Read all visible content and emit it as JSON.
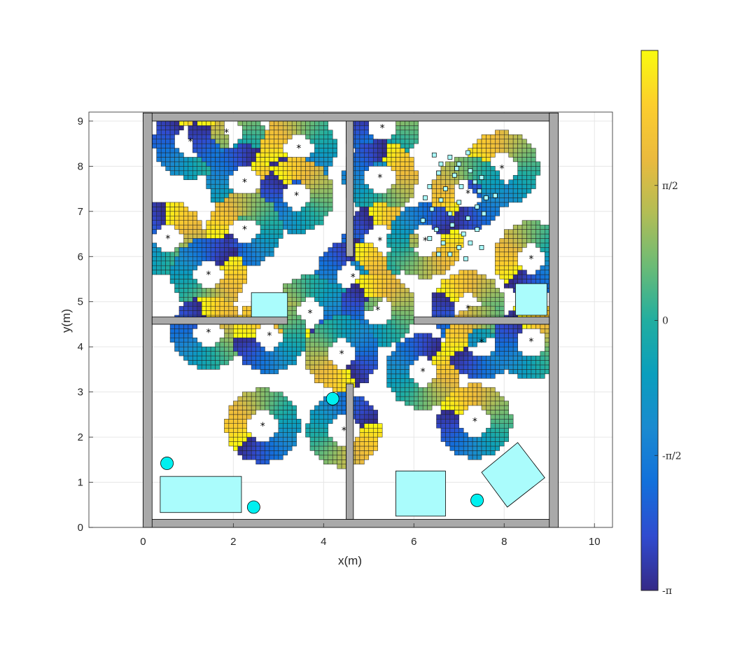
{
  "chart_data": {
    "type": "heatmap",
    "xlabel": "x(m)",
    "ylabel": "y(m)",
    "xlim": [
      -1.2,
      10.4
    ],
    "ylim": [
      0,
      9.2
    ],
    "xticks": [
      0,
      2,
      4,
      6,
      8,
      10
    ],
    "yticks": [
      0,
      1,
      2,
      3,
      4,
      5,
      6,
      7,
      8,
      9
    ],
    "grid": true,
    "colormap": "parula",
    "colorbar": {
      "range": [
        -3.1416,
        3.1416
      ],
      "ticks": [
        {
          "value": -3.1416,
          "label": "-π"
        },
        {
          "value": -1.5708,
          "label": "-π/2"
        },
        {
          "value": 0,
          "label": "0"
        },
        {
          "value": 1.5708,
          "label": "π/2"
        }
      ]
    },
    "walls": [
      {
        "x": 0,
        "y": 0,
        "w": 9.2,
        "h": 0.18
      },
      {
        "x": 0,
        "y": 9.0,
        "w": 9.2,
        "h": 0.18
      },
      {
        "x": 0,
        "y": 0,
        "w": 0.2,
        "h": 9.18
      },
      {
        "x": 9.0,
        "y": 0,
        "w": 0.2,
        "h": 9.18
      },
      {
        "x": 4.5,
        "y": 6.0,
        "w": 0.16,
        "h": 3.0
      },
      {
        "x": 4.5,
        "y": 0.18,
        "w": 0.16,
        "h": 3.0
      },
      {
        "x": 0.2,
        "y": 4.5,
        "w": 3.0,
        "h": 0.16
      },
      {
        "x": 6.0,
        "y": 4.5,
        "w": 3.0,
        "h": 0.16
      }
    ],
    "obstacles": {
      "rects": [
        {
          "x": 0.38,
          "y": 0.33,
          "w": 1.8,
          "h": 0.8
        },
        {
          "x": 5.6,
          "y": 0.25,
          "w": 1.1,
          "h": 1.0
        },
        {
          "x": 2.4,
          "y": 4.65,
          "w": 0.8,
          "h": 0.55
        },
        {
          "x": 8.25,
          "y": 4.7,
          "w": 0.7,
          "h": 0.7
        }
      ],
      "polygons": [
        [
          [
            7.5,
            1.22
          ],
          [
            8.3,
            1.88
          ],
          [
            8.9,
            1.1
          ],
          [
            8.07,
            0.45
          ]
        ]
      ],
      "circles": [
        {
          "x": 0.53,
          "y": 1.42,
          "r": 0.14
        },
        {
          "x": 2.45,
          "y": 0.45,
          "r": 0.14
        },
        {
          "x": 4.2,
          "y": 2.85,
          "r": 0.14
        },
        {
          "x": 7.4,
          "y": 0.6,
          "r": 0.14
        }
      ],
      "small_squares": [
        [
          6.45,
          8.25
        ],
        [
          6.6,
          8.05
        ],
        [
          6.8,
          8.2
        ],
        [
          7.0,
          8.05
        ],
        [
          7.2,
          8.3
        ],
        [
          6.55,
          7.85
        ],
        [
          6.9,
          7.8
        ],
        [
          7.25,
          7.9
        ],
        [
          7.5,
          7.75
        ],
        [
          6.35,
          7.55
        ],
        [
          6.7,
          7.5
        ],
        [
          7.05,
          7.55
        ],
        [
          7.45,
          7.45
        ],
        [
          7.8,
          7.35
        ],
        [
          6.25,
          7.3
        ],
        [
          6.6,
          7.25
        ],
        [
          7.0,
          7.2
        ],
        [
          7.4,
          7.1
        ],
        [
          7.6,
          7.3
        ],
        [
          6.4,
          7.05
        ],
        [
          6.8,
          6.95
        ],
        [
          7.2,
          6.85
        ],
        [
          7.55,
          6.95
        ],
        [
          6.2,
          6.8
        ],
        [
          6.5,
          6.6
        ],
        [
          6.85,
          6.7
        ],
        [
          7.1,
          6.5
        ],
        [
          7.4,
          6.6
        ],
        [
          6.65,
          6.3
        ],
        [
          7.0,
          6.2
        ],
        [
          6.35,
          6.4
        ],
        [
          7.25,
          6.3
        ],
        [
          6.8,
          6.05
        ],
        [
          7.5,
          6.2
        ],
        [
          7.15,
          5.95
        ],
        [
          6.55,
          6.05
        ],
        [
          7.35,
          7.65
        ],
        [
          6.95,
          7.95
        ]
      ]
    },
    "rings": [
      {
        "x": 1.05,
        "y": 8.55,
        "phase": 1.0
      },
      {
        "x": 1.85,
        "y": 8.75,
        "phase": 0.3
      },
      {
        "x": 2.25,
        "y": 7.65,
        "phase": 2.0
      },
      {
        "x": 3.45,
        "y": 8.4,
        "phase": -0.5
      },
      {
        "x": 3.4,
        "y": 7.35,
        "phase": 0.8
      },
      {
        "x": 0.55,
        "y": 6.4,
        "phase": 1.5
      },
      {
        "x": 2.25,
        "y": 6.6,
        "phase": -0.3
      },
      {
        "x": 1.45,
        "y": 5.6,
        "phase": 2.5
      },
      {
        "x": 5.3,
        "y": 8.85,
        "phase": 0.6
      },
      {
        "x": 5.25,
        "y": 7.75,
        "phase": 1.8
      },
      {
        "x": 7.95,
        "y": 7.95,
        "phase": 0.2
      },
      {
        "x": 7.2,
        "y": 7.4,
        "phase": -1.0
      },
      {
        "x": 5.25,
        "y": 6.35,
        "phase": 1.2
      },
      {
        "x": 6.25,
        "y": 6.35,
        "phase": 2.8
      },
      {
        "x": 8.6,
        "y": 5.95,
        "phase": -0.8
      },
      {
        "x": 7.2,
        "y": 4.85,
        "phase": 0.5
      },
      {
        "x": 4.65,
        "y": 5.55,
        "phase": 1.7
      },
      {
        "x": 3.7,
        "y": 4.75,
        "phase": -1.5
      },
      {
        "x": 5.2,
        "y": 4.82,
        "phase": 0.9
      },
      {
        "x": 1.45,
        "y": 4.32,
        "phase": 1.3
      },
      {
        "x": 2.8,
        "y": 4.25,
        "phase": 0.0
      },
      {
        "x": 4.4,
        "y": 3.85,
        "phase": -2.0
      },
      {
        "x": 6.2,
        "y": 3.45,
        "phase": 2.2
      },
      {
        "x": 7.5,
        "y": 4.1,
        "phase": -0.4
      },
      {
        "x": 8.6,
        "y": 4.12,
        "phase": 1.1
      },
      {
        "x": 2.65,
        "y": 2.25,
        "phase": -0.7
      },
      {
        "x": 4.45,
        "y": 2.15,
        "phase": 2.9
      },
      {
        "x": 7.35,
        "y": 2.35,
        "phase": 0.4
      }
    ]
  }
}
